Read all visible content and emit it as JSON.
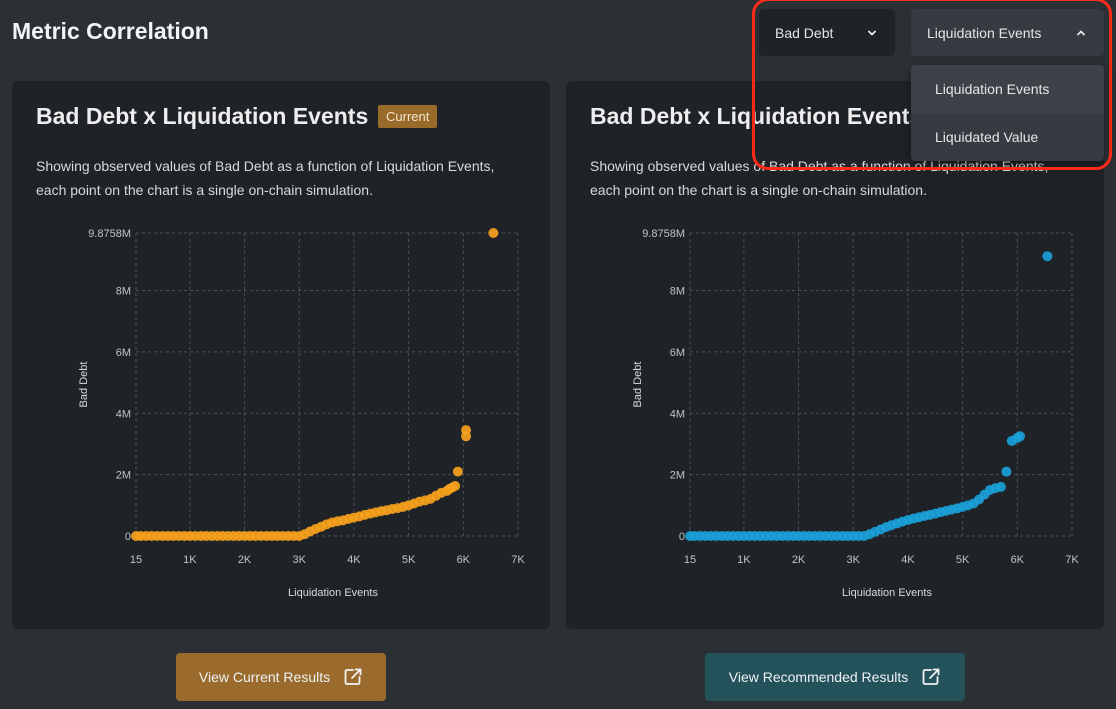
{
  "page": {
    "title": "Metric Correlation"
  },
  "selectors": {
    "metric": {
      "label": "Bad Debt"
    },
    "event": {
      "label": "Liquidation Events",
      "options": [
        "Liquidation Events",
        "Liquidated Value"
      ]
    }
  },
  "cards": [
    {
      "title": "Bad Debt x Liquidation Events",
      "badge": "Current",
      "description": "Showing observed values of Bad Debt as a function of Liquidation Events, each point on the chart is a single on-chain simulation."
    },
    {
      "title": "Bad Debt x Liquidation Events",
      "description": "Showing observed values of Bad Debt as a function of Liquidation Events, each point on the chart is a single on-chain simulation."
    }
  ],
  "buttons": {
    "current": "View Current Results",
    "recommended": "View Recommended Results"
  },
  "colors": {
    "current": "#f5a11c",
    "recommended": "#1a9fd8"
  },
  "chart_data": [
    {
      "type": "scatter",
      "title": "Bad Debt x Liquidation Events",
      "xlabel": "Liquidation Events",
      "ylabel": "Bad Debt",
      "xlim": [
        15,
        7000
      ],
      "ylim": [
        0,
        9875800
      ],
      "xticks": [
        {
          "value": 15,
          "label": "15"
        },
        {
          "value": 1000,
          "label": "1K"
        },
        {
          "value": 2000,
          "label": "2K"
        },
        {
          "value": 3000,
          "label": "3K"
        },
        {
          "value": 4000,
          "label": "4K"
        },
        {
          "value": 5000,
          "label": "5K"
        },
        {
          "value": 6000,
          "label": "6K"
        },
        {
          "value": 7000,
          "label": "7K"
        }
      ],
      "yticks": [
        {
          "value": 0,
          "label": "0"
        },
        {
          "value": 2000000,
          "label": "2M"
        },
        {
          "value": 4000000,
          "label": "4M"
        },
        {
          "value": 6000000,
          "label": "6M"
        },
        {
          "value": 8000000,
          "label": "8M"
        },
        {
          "value": 9875800,
          "label": "9.8758M"
        }
      ],
      "series": [
        {
          "name": "Current",
          "color": "#f5a11c",
          "x": [
            15,
            100,
            200,
            300,
            400,
            500,
            600,
            700,
            800,
            900,
            1000,
            1100,
            1200,
            1300,
            1400,
            1500,
            1600,
            1700,
            1800,
            1900,
            2000,
            2100,
            2200,
            2300,
            2400,
            2500,
            2600,
            2700,
            2800,
            2900,
            3000,
            3100,
            3200,
            3300,
            3400,
            3500,
            3600,
            3700,
            3800,
            3900,
            4000,
            4100,
            4200,
            4300,
            4400,
            4500,
            4600,
            4700,
            4800,
            4900,
            5000,
            5100,
            5200,
            5300,
            5400,
            5500,
            5600,
            5700,
            5750,
            5800,
            5850,
            5900,
            6050,
            6050,
            6550
          ],
          "y": [
            0,
            0,
            0,
            0,
            0,
            0,
            0,
            0,
            0,
            0,
            0,
            0,
            0,
            0,
            0,
            0,
            0,
            0,
            0,
            0,
            0,
            0,
            0,
            0,
            0,
            0,
            0,
            0,
            0,
            0,
            0,
            60000,
            150000,
            230000,
            300000,
            380000,
            440000,
            480000,
            510000,
            560000,
            600000,
            640000,
            690000,
            730000,
            770000,
            810000,
            840000,
            880000,
            910000,
            950000,
            1000000,
            1060000,
            1120000,
            1160000,
            1210000,
            1310000,
            1410000,
            1470000,
            1540000,
            1580000,
            1630000,
            2100000,
            3250000,
            3450000,
            9875800
          ]
        }
      ]
    },
    {
      "type": "scatter",
      "title": "Bad Debt x Liquidation Events",
      "xlabel": "Liquidation Events",
      "ylabel": "Bad Debt",
      "xlim": [
        15,
        7000
      ],
      "ylim": [
        0,
        9875800
      ],
      "xticks": [
        {
          "value": 15,
          "label": "15"
        },
        {
          "value": 1000,
          "label": "1K"
        },
        {
          "value": 2000,
          "label": "2K"
        },
        {
          "value": 3000,
          "label": "3K"
        },
        {
          "value": 4000,
          "label": "4K"
        },
        {
          "value": 5000,
          "label": "5K"
        },
        {
          "value": 6000,
          "label": "6K"
        },
        {
          "value": 7000,
          "label": "7K"
        }
      ],
      "yticks": [
        {
          "value": 0,
          "label": "0"
        },
        {
          "value": 2000000,
          "label": "2M"
        },
        {
          "value": 4000000,
          "label": "4M"
        },
        {
          "value": 6000000,
          "label": "6M"
        },
        {
          "value": 8000000,
          "label": "8M"
        },
        {
          "value": 9875800,
          "label": "9.8758M"
        }
      ],
      "series": [
        {
          "name": "Recommended",
          "color": "#1a9fd8",
          "x": [
            15,
            100,
            200,
            300,
            400,
            500,
            600,
            700,
            800,
            900,
            1000,
            1100,
            1200,
            1300,
            1400,
            1500,
            1600,
            1700,
            1800,
            1900,
            2000,
            2100,
            2200,
            2300,
            2400,
            2500,
            2600,
            2700,
            2800,
            2900,
            3000,
            3100,
            3200,
            3300,
            3400,
            3500,
            3600,
            3700,
            3800,
            3900,
            4000,
            4100,
            4200,
            4300,
            4400,
            4500,
            4600,
            4700,
            4800,
            4900,
            5000,
            5100,
            5200,
            5300,
            5400,
            5500,
            5600,
            5700,
            5800,
            5900,
            6000,
            6050,
            6550
          ],
          "y": [
            0,
            0,
            0,
            0,
            0,
            0,
            0,
            0,
            0,
            0,
            0,
            0,
            0,
            0,
            0,
            0,
            0,
            0,
            0,
            0,
            0,
            0,
            0,
            0,
            0,
            0,
            0,
            0,
            0,
            0,
            0,
            0,
            0,
            60000,
            140000,
            210000,
            290000,
            350000,
            410000,
            470000,
            520000,
            570000,
            610000,
            650000,
            690000,
            730000,
            780000,
            820000,
            860000,
            900000,
            950000,
            1000000,
            1060000,
            1190000,
            1350000,
            1500000,
            1560000,
            1600000,
            2100000,
            3100000,
            3200000,
            3250000,
            9120000
          ]
        }
      ]
    }
  ]
}
